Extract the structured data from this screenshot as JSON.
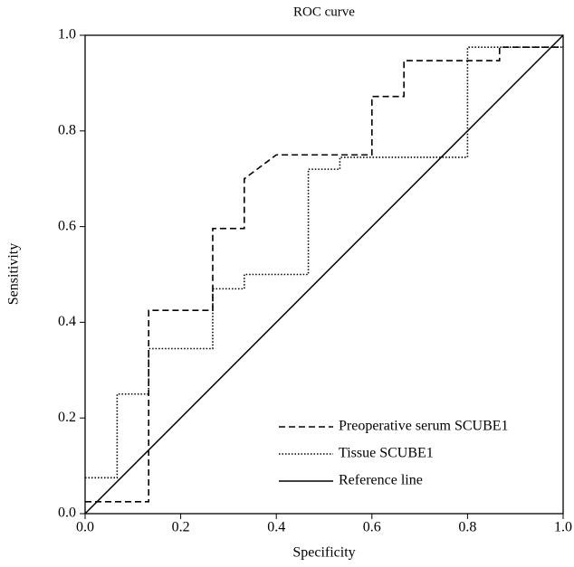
{
  "chart_data": {
    "type": "line",
    "title": "ROC curve",
    "xlabel": "Specificity",
    "ylabel": "Sensitivity",
    "xlim": [
      0,
      1
    ],
    "ylim": [
      0,
      1
    ],
    "xticks": [
      {
        "value": 0,
        "label": "0.0"
      },
      0.2,
      0.4,
      0.6,
      0.8,
      {
        "value": 1,
        "label": "1.0"
      }
    ],
    "yticks": [
      {
        "value": 0,
        "label": "0.0"
      },
      0.2,
      0.4,
      0.6,
      0.8,
      {
        "value": 1,
        "label": "1.0"
      }
    ],
    "legend": "lower right",
    "series": [
      {
        "name": "Preoperative serum SCUBE1",
        "color": "#000000",
        "line_style": "dashed",
        "x": [
          0,
          0.133,
          0.133,
          0.267,
          0.267,
          0.333,
          0.333,
          0.4,
          0.6,
          0.6,
          0.667,
          0.667,
          0.867,
          0.867,
          1
        ],
        "values": [
          0.025,
          0.025,
          0.425,
          0.425,
          0.596,
          0.596,
          0.7,
          0.75,
          0.75,
          0.872,
          0.872,
          0.947,
          0.947,
          0.975,
          0.975
        ]
      },
      {
        "name": "Tissue SCUBE1",
        "color": "#000000",
        "line_style": "dotted",
        "x": [
          0,
          0.067,
          0.067,
          0.133,
          0.133,
          0.267,
          0.267,
          0.333,
          0.333,
          0.467,
          0.467,
          0.533,
          0.533,
          0.8,
          0.8,
          1
        ],
        "values": [
          0.075,
          0.075,
          0.25,
          0.25,
          0.345,
          0.345,
          0.47,
          0.47,
          0.5,
          0.5,
          0.72,
          0.72,
          0.745,
          0.745,
          0.975,
          0.975
        ]
      },
      {
        "name": "Reference line",
        "color": "#000000",
        "line_style": "solid",
        "x": [
          0,
          1
        ],
        "values": [
          0,
          1
        ]
      }
    ]
  }
}
